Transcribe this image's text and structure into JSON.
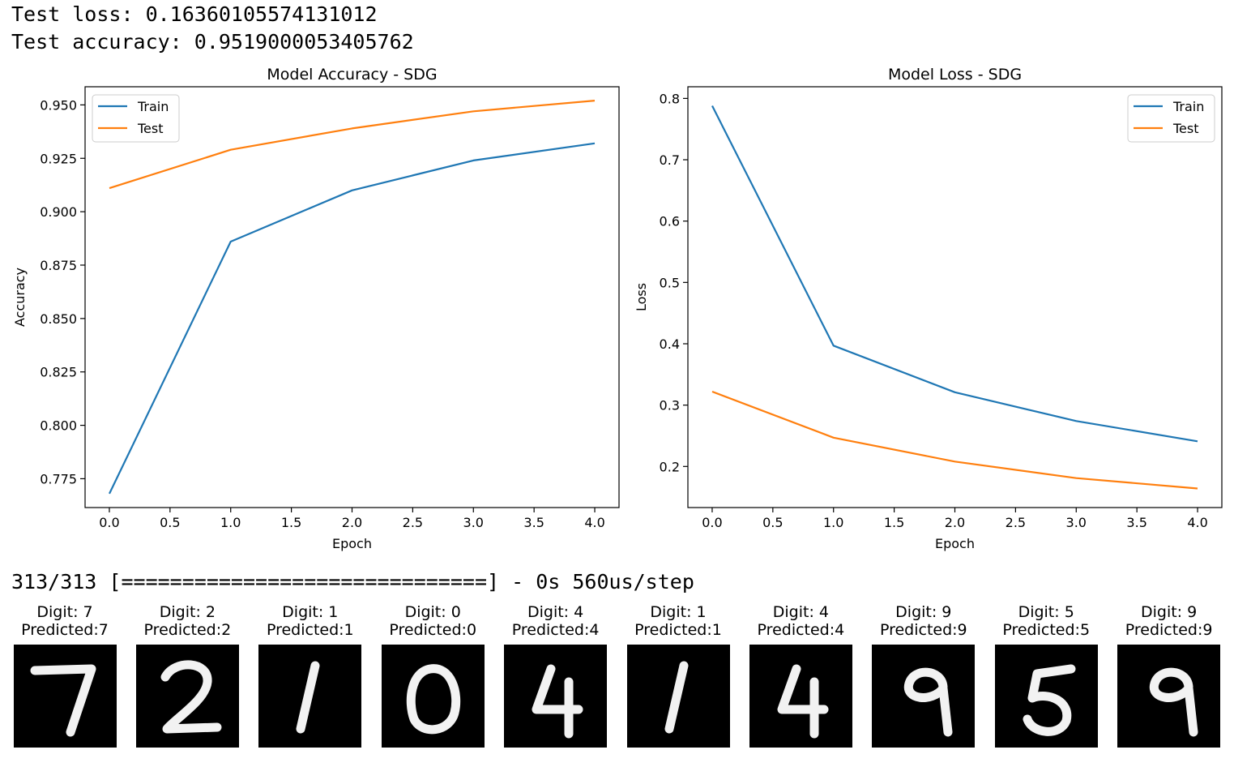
{
  "output": {
    "test_loss": "Test loss: 0.16360105574131012",
    "test_accuracy": "Test accuracy: 0.9519000053405762",
    "progress": "313/313 [==============================] - 0s 560us/step"
  },
  "colors": {
    "train": "#1f77b4",
    "test": "#ff7f0e"
  },
  "chart_data": [
    {
      "type": "line",
      "title": "Model Accuracy - SDG",
      "xlabel": "Epoch",
      "ylabel": "Accuracy",
      "x": [
        0,
        1,
        2,
        3,
        4
      ],
      "series": [
        {
          "name": "Train",
          "values": [
            0.768,
            0.886,
            0.91,
            0.924,
            0.932
          ]
        },
        {
          "name": "Test",
          "values": [
            0.911,
            0.929,
            0.939,
            0.947,
            0.952
          ]
        }
      ],
      "xlim": [
        -0.2,
        4.2
      ],
      "ylim": [
        0.7615,
        0.9585
      ],
      "xticks": [
        0.0,
        0.5,
        1.0,
        1.5,
        2.0,
        2.5,
        3.0,
        3.5,
        4.0
      ],
      "xtick_labels": [
        "0.0",
        "0.5",
        "1.0",
        "1.5",
        "2.0",
        "2.5",
        "3.0",
        "3.5",
        "4.0"
      ],
      "yticks": [
        0.775,
        0.8,
        0.825,
        0.85,
        0.875,
        0.9,
        0.925,
        0.95
      ],
      "ytick_labels": [
        "0.775",
        "0.800",
        "0.825",
        "0.850",
        "0.875",
        "0.900",
        "0.925",
        "0.950"
      ],
      "legend": "upper-left",
      "grid": false
    },
    {
      "type": "line",
      "title": "Model Loss - SDG",
      "xlabel": "Epoch",
      "ylabel": "Loss",
      "x": [
        0,
        1,
        2,
        3,
        4
      ],
      "series": [
        {
          "name": "Train",
          "values": [
            0.788,
            0.397,
            0.321,
            0.274,
            0.241
          ]
        },
        {
          "name": "Test",
          "values": [
            0.322,
            0.247,
            0.208,
            0.181,
            0.164
          ]
        }
      ],
      "xlim": [
        -0.2,
        4.2
      ],
      "ylim": [
        0.133,
        0.819
      ],
      "xticks": [
        0.0,
        0.5,
        1.0,
        1.5,
        2.0,
        2.5,
        3.0,
        3.5,
        4.0
      ],
      "xtick_labels": [
        "0.0",
        "0.5",
        "1.0",
        "1.5",
        "2.0",
        "2.5",
        "3.0",
        "3.5",
        "4.0"
      ],
      "yticks": [
        0.2,
        0.3,
        0.4,
        0.5,
        0.6,
        0.7,
        0.8
      ],
      "ytick_labels": [
        "0.2",
        "0.3",
        "0.4",
        "0.5",
        "0.6",
        "0.7",
        "0.8"
      ],
      "legend": "upper-right",
      "grid": false
    }
  ],
  "digits": [
    {
      "digit": "Digit: 7",
      "predicted": "Predicted:7",
      "glyph": "7"
    },
    {
      "digit": "Digit: 2",
      "predicted": "Predicted:2",
      "glyph": "2"
    },
    {
      "digit": "Digit: 1",
      "predicted": "Predicted:1",
      "glyph": "1"
    },
    {
      "digit": "Digit: 0",
      "predicted": "Predicted:0",
      "glyph": "0"
    },
    {
      "digit": "Digit: 4",
      "predicted": "Predicted:4",
      "glyph": "4"
    },
    {
      "digit": "Digit: 1",
      "predicted": "Predicted:1",
      "glyph": "1"
    },
    {
      "digit": "Digit: 4",
      "predicted": "Predicted:4",
      "glyph": "4"
    },
    {
      "digit": "Digit: 9",
      "predicted": "Predicted:9",
      "glyph": "9"
    },
    {
      "digit": "Digit: 5",
      "predicted": "Predicted:5",
      "glyph": "5"
    },
    {
      "digit": "Digit: 9",
      "predicted": "Predicted:9",
      "glyph": "9"
    }
  ]
}
